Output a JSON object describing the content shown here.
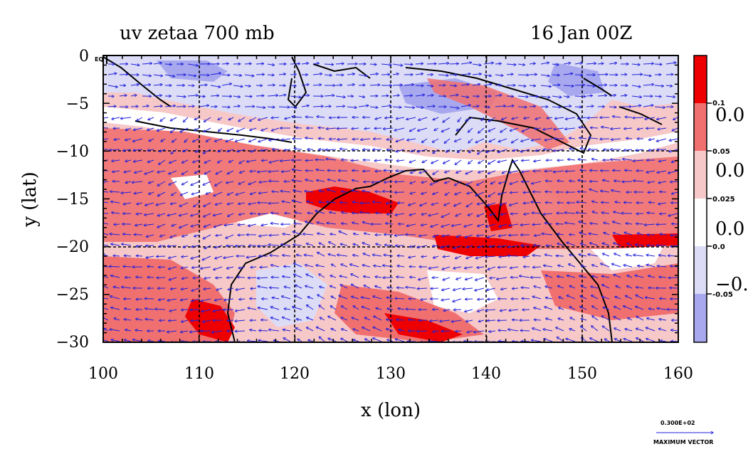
{
  "title_left": "uv zetaa 700 mb",
  "title_right": "16 Jan 00Z",
  "xlabel": "x (lon)",
  "ylabel": "y (lat)",
  "map": {
    "lon_range": [
      100,
      160
    ],
    "lat_range": [
      -30,
      0
    ],
    "x_ticks": [
      "100",
      "110",
      "120",
      "130",
      "140",
      "150",
      "160"
    ],
    "y_ticks": [
      "0",
      "−5",
      "−10",
      "−15",
      "−20",
      "−25",
      "−30"
    ],
    "corner_label": "EQ",
    "grid_lines": true
  },
  "colorbar": {
    "colors": [
      "#ee0000",
      "#f07070",
      "#f7c8c8",
      "#ffffff",
      "#dcdcf6",
      "#a8a8ee"
    ],
    "labels": [
      "0.1",
      "0.05",
      "0.025",
      "0.0",
      "-0.05"
    ],
    "big_labels": [
      "0.0",
      "0.0",
      "0.0",
      "−0."
    ]
  },
  "vector_key": {
    "value_label": "0.300E+02",
    "caption": "MAXIMUM VECTOR"
  },
  "colors": {
    "land_outline": "#000000",
    "vectors": "#2020dd",
    "contour_red": "#dd0000"
  }
}
